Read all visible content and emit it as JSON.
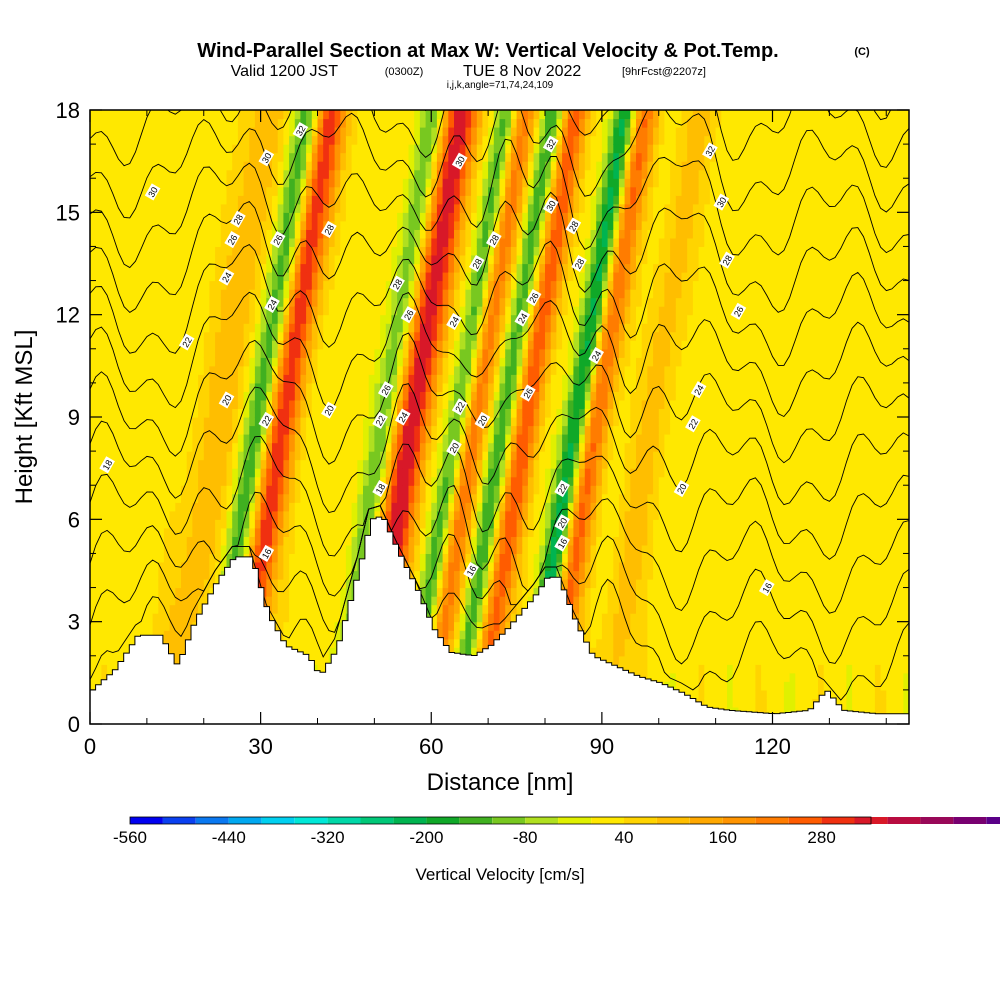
{
  "title": {
    "main": "Wind-Parallel Section at Max W: Vertical Velocity & Pot.Temp.",
    "copyright": "(C)",
    "valid_prefix": "Valid 1200 JST",
    "valid_z": "(0300Z)",
    "valid_date": "TUE 8 Nov 2022",
    "forecast": "[9hrFcst@2207z]",
    "indices": "i,j,k,angle=71,74,24,109"
  },
  "chart_data": {
    "type": "heatmap",
    "xlabel": "Distance [nm]",
    "ylabel": "Height [Kft MSL]",
    "xlim": [
      0,
      144
    ],
    "ylim": [
      0,
      18
    ],
    "x_ticks": [
      "0",
      "30",
      "60",
      "90",
      "120"
    ],
    "x_tick_values": [
      0,
      30,
      60,
      90,
      120
    ],
    "y_ticks": [
      "0",
      "3",
      "6",
      "9",
      "12",
      "15",
      "18"
    ],
    "y_tick_values": [
      0,
      3,
      6,
      9,
      12,
      15,
      18
    ],
    "colorbar": {
      "label": "Vertical Velocity [cm/s]",
      "tick_labels": [
        "-560",
        "-440",
        "-320",
        "-200",
        "-80",
        "40",
        "160",
        "280"
      ],
      "tick_values": [
        -560,
        -440,
        -320,
        -200,
        -80,
        40,
        160,
        280
      ],
      "range": [
        -560,
        340
      ],
      "step": 40,
      "colors": [
        "#0000f0",
        "#0a40f0",
        "#0a78f0",
        "#00a8f0",
        "#00d0f0",
        "#00e8d8",
        "#00d8a8",
        "#00c878",
        "#00b450",
        "#10a828",
        "#40b020",
        "#78c820",
        "#b0e020",
        "#e0f000",
        "#ffe800",
        "#ffd400",
        "#ffbe00",
        "#ffa800",
        "#ff9400",
        "#ff7c00",
        "#ff5c00",
        "#f03010",
        "#d81828",
        "#b80c40",
        "#980858",
        "#780070",
        "#5a0088"
      ]
    },
    "terrain_kft": [
      {
        "x": 0,
        "h": 1.0
      },
      {
        "x": 4,
        "h": 1.6
      },
      {
        "x": 8,
        "h": 2.6
      },
      {
        "x": 12,
        "h": 2.6
      },
      {
        "x": 15,
        "h": 1.7
      },
      {
        "x": 18,
        "h": 3.0
      },
      {
        "x": 22,
        "h": 4.2
      },
      {
        "x": 25,
        "h": 4.9
      },
      {
        "x": 28,
        "h": 4.9
      },
      {
        "x": 31,
        "h": 3.2
      },
      {
        "x": 34,
        "h": 2.3
      },
      {
        "x": 38,
        "h": 2.0
      },
      {
        "x": 40,
        "h": 1.4
      },
      {
        "x": 43,
        "h": 2.2
      },
      {
        "x": 47,
        "h": 4.6
      },
      {
        "x": 49,
        "h": 6.0
      },
      {
        "x": 51,
        "h": 6.1
      },
      {
        "x": 54,
        "h": 5.0
      },
      {
        "x": 57,
        "h": 4.0
      },
      {
        "x": 60,
        "h": 2.8
      },
      {
        "x": 63,
        "h": 2.1
      },
      {
        "x": 67,
        "h": 2.0
      },
      {
        "x": 70,
        "h": 2.3
      },
      {
        "x": 73,
        "h": 2.8
      },
      {
        "x": 76,
        "h": 3.4
      },
      {
        "x": 78,
        "h": 3.8
      },
      {
        "x": 80,
        "h": 4.3
      },
      {
        "x": 82,
        "h": 4.3
      },
      {
        "x": 85,
        "h": 3.0
      },
      {
        "x": 88,
        "h": 2.0
      },
      {
        "x": 92,
        "h": 1.7
      },
      {
        "x": 96,
        "h": 1.4
      },
      {
        "x": 100,
        "h": 1.2
      },
      {
        "x": 104,
        "h": 0.9
      },
      {
        "x": 108,
        "h": 0.5
      },
      {
        "x": 112,
        "h": 0.4
      },
      {
        "x": 120,
        "h": 0.3
      },
      {
        "x": 126,
        "h": 0.4
      },
      {
        "x": 129,
        "h": 1.0
      },
      {
        "x": 132,
        "h": 0.4
      },
      {
        "x": 138,
        "h": 0.3
      },
      {
        "x": 144,
        "h": 0.3
      }
    ],
    "updrafts": [
      {
        "x": 31,
        "w": 3,
        "amp": 300
      },
      {
        "x": 54,
        "w": 3.2,
        "amp": 330
      },
      {
        "x": 65,
        "w": 2.4,
        "amp": 210
      },
      {
        "x": 74,
        "w": 2.4,
        "amp": 250
      },
      {
        "x": 86,
        "w": 2.6,
        "amp": 250
      },
      {
        "x": 20,
        "w": 4,
        "amp": 90
      },
      {
        "x": 96,
        "w": 3,
        "amp": 80
      }
    ],
    "downdrafts": [
      {
        "x": 27,
        "w": 2.5,
        "amp": -200
      },
      {
        "x": 49,
        "w": 2.2,
        "amp": -150
      },
      {
        "x": 62,
        "w": 2,
        "amp": -180
      },
      {
        "x": 70,
        "w": 2,
        "amp": -180
      },
      {
        "x": 83,
        "w": 2.2,
        "amp": -280
      }
    ],
    "theta_levels": [
      18,
      20,
      22,
      24,
      26,
      28,
      30,
      32
    ],
    "contour_labels": [
      {
        "text": "16",
        "x": 31,
        "h": 5.0
      },
      {
        "text": "16",
        "x": 67,
        "h": 4.5
      },
      {
        "text": "16",
        "x": 83,
        "h": 5.3
      },
      {
        "text": "16",
        "x": 119,
        "h": 4.0
      },
      {
        "text": "18",
        "x": 3,
        "h": 7.6
      },
      {
        "text": "18",
        "x": 51,
        "h": 6.9
      },
      {
        "text": "20",
        "x": 24,
        "h": 9.5
      },
      {
        "text": "20",
        "x": 42,
        "h": 9.2
      },
      {
        "text": "20",
        "x": 64,
        "h": 8.1
      },
      {
        "text": "20",
        "x": 69,
        "h": 8.9
      },
      {
        "text": "20",
        "x": 83,
        "h": 5.9
      },
      {
        "text": "20",
        "x": 104,
        "h": 6.9
      },
      {
        "text": "22",
        "x": 17,
        "h": 11.2
      },
      {
        "text": "22",
        "x": 31,
        "h": 8.9
      },
      {
        "text": "22",
        "x": 51,
        "h": 8.9
      },
      {
        "text": "22",
        "x": 65,
        "h": 9.3
      },
      {
        "text": "22",
        "x": 83,
        "h": 6.9
      },
      {
        "text": "22",
        "x": 106,
        "h": 8.8
      },
      {
        "text": "24",
        "x": 24,
        "h": 13.1
      },
      {
        "text": "24",
        "x": 32,
        "h": 12.3
      },
      {
        "text": "24",
        "x": 55,
        "h": 9.0
      },
      {
        "text": "24",
        "x": 64,
        "h": 11.8
      },
      {
        "text": "24",
        "x": 76,
        "h": 11.9
      },
      {
        "text": "24",
        "x": 89,
        "h": 10.8
      },
      {
        "text": "24",
        "x": 107,
        "h": 9.8
      },
      {
        "text": "26",
        "x": 25,
        "h": 14.2
      },
      {
        "text": "26",
        "x": 33,
        "h": 14.2
      },
      {
        "text": "26",
        "x": 52,
        "h": 9.8
      },
      {
        "text": "26",
        "x": 56,
        "h": 12.0
      },
      {
        "text": "26",
        "x": 77,
        "h": 9.7
      },
      {
        "text": "26",
        "x": 78,
        "h": 12.5
      },
      {
        "text": "26",
        "x": 114,
        "h": 12.1
      },
      {
        "text": "28",
        "x": 26,
        "h": 14.8
      },
      {
        "text": "28",
        "x": 42,
        "h": 14.5
      },
      {
        "text": "28",
        "x": 54,
        "h": 12.9
      },
      {
        "text": "28",
        "x": 68,
        "h": 13.5
      },
      {
        "text": "28",
        "x": 71,
        "h": 14.2
      },
      {
        "text": "28",
        "x": 85,
        "h": 14.6
      },
      {
        "text": "28",
        "x": 86,
        "h": 13.5
      },
      {
        "text": "28",
        "x": 112,
        "h": 13.6
      },
      {
        "text": "30",
        "x": 11,
        "h": 15.6
      },
      {
        "text": "30",
        "x": 31,
        "h": 16.6
      },
      {
        "text": "30",
        "x": 65,
        "h": 16.5
      },
      {
        "text": "30",
        "x": 81,
        "h": 15.2
      },
      {
        "text": "30",
        "x": 111,
        "h": 15.3
      },
      {
        "text": "32",
        "x": 37,
        "h": 17.4
      },
      {
        "text": "32",
        "x": 81,
        "h": 17.0
      },
      {
        "text": "32",
        "x": 109,
        "h": 16.8
      }
    ]
  }
}
